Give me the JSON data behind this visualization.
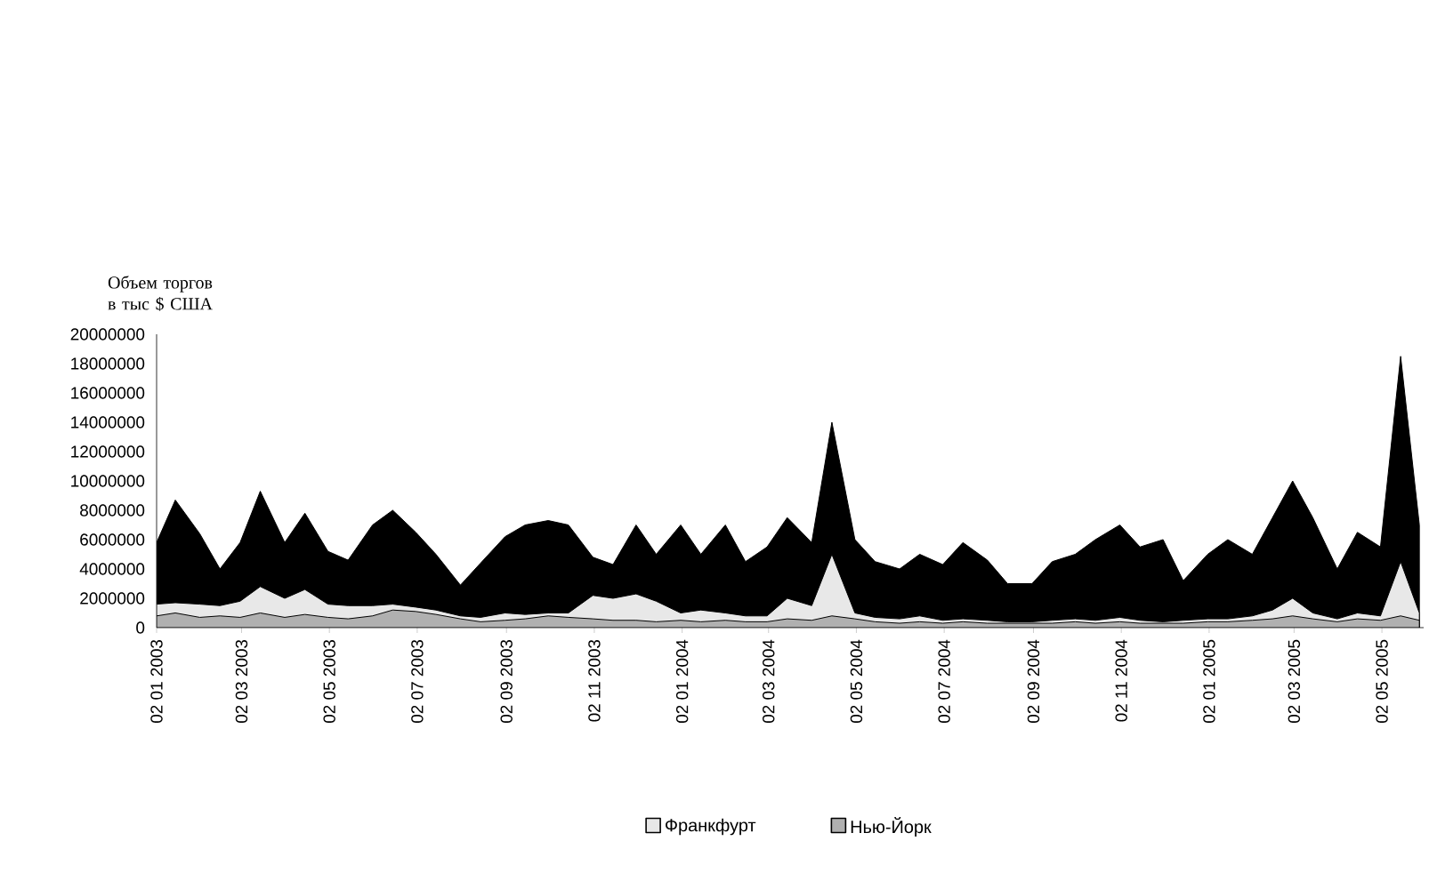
{
  "chart_data": {
    "type": "area",
    "ylabel": "Объем торгов в тыс $ США",
    "x": [
      "2003-01-02",
      "2003-01-15",
      "2003-02-01",
      "2003-02-15",
      "2003-03-01",
      "2003-03-15",
      "2003-04-01",
      "2003-04-15",
      "2003-05-01",
      "2003-05-15",
      "2003-06-01",
      "2003-06-15",
      "2003-07-01",
      "2003-07-15",
      "2003-08-01",
      "2003-08-15",
      "2003-09-01",
      "2003-09-15",
      "2003-10-01",
      "2003-10-15",
      "2003-11-01",
      "2003-11-15",
      "2003-12-01",
      "2003-12-15",
      "2004-01-01",
      "2004-01-15",
      "2004-02-01",
      "2004-02-15",
      "2004-03-01",
      "2004-03-15",
      "2004-04-01",
      "2004-04-15",
      "2004-05-01",
      "2004-05-15",
      "2004-06-01",
      "2004-06-15",
      "2004-07-01",
      "2004-07-15",
      "2004-08-01",
      "2004-08-15",
      "2004-09-01",
      "2004-09-15",
      "2004-10-01",
      "2004-10-15",
      "2004-11-01",
      "2004-11-15",
      "2004-12-01",
      "2004-12-15",
      "2005-01-01",
      "2005-01-15",
      "2005-02-01",
      "2005-02-15",
      "2005-03-01",
      "2005-03-15",
      "2005-04-01",
      "2005-04-15",
      "2005-05-01",
      "2005-05-15",
      "2005-05-28"
    ],
    "series": [
      {
        "color": "#000000",
        "values": [
          5800000,
          8700000,
          6400000,
          4000000,
          5800000,
          9300000,
          5800000,
          7800000,
          5200000,
          4600000,
          7000000,
          8000000,
          6500000,
          5000000,
          2900000,
          4400000,
          6200000,
          7000000,
          7300000,
          7000000,
          4800000,
          4300000,
          7000000,
          5000000,
          7000000,
          5000000,
          7000000,
          4500000,
          5500000,
          7500000,
          5800000,
          14000000,
          6000000,
          4500000,
          4000000,
          5000000,
          4300000,
          5800000,
          4600000,
          3000000,
          3000000,
          4500000,
          5000000,
          6000000,
          7000000,
          5500000,
          6000000,
          3200000,
          5000000,
          6000000,
          5000000,
          7500000,
          10000000,
          7500000,
          4000000,
          6500000,
          5500000,
          18500000,
          7000000
        ]
      },
      {
        "name": "Франкфурт",
        "color": "#e8e8e8",
        "values": [
          1600000,
          1700000,
          1600000,
          1500000,
          1800000,
          2800000,
          2000000,
          2600000,
          1600000,
          1500000,
          1500000,
          1600000,
          1400000,
          1200000,
          800000,
          700000,
          1000000,
          900000,
          1000000,
          1000000,
          2200000,
          2000000,
          2300000,
          1800000,
          1000000,
          1200000,
          1000000,
          800000,
          800000,
          2000000,
          1500000,
          5000000,
          1000000,
          700000,
          600000,
          800000,
          500000,
          600000,
          500000,
          400000,
          400000,
          500000,
          600000,
          500000,
          700000,
          500000,
          400000,
          500000,
          600000,
          600000,
          800000,
          1200000,
          2000000,
          1000000,
          600000,
          1000000,
          800000,
          4500000,
          1000000
        ]
      },
      {
        "name": "Нью-Йорк",
        "color": "#b0b0b0",
        "values": [
          800000,
          1000000,
          700000,
          800000,
          700000,
          1000000,
          700000,
          900000,
          700000,
          600000,
          800000,
          1200000,
          1100000,
          900000,
          600000,
          400000,
          500000,
          600000,
          800000,
          700000,
          600000,
          500000,
          500000,
          400000,
          500000,
          400000,
          500000,
          400000,
          400000,
          600000,
          500000,
          800000,
          600000,
          400000,
          300000,
          400000,
          300000,
          400000,
          300000,
          300000,
          300000,
          300000,
          400000,
          300000,
          400000,
          300000,
          300000,
          300000,
          400000,
          400000,
          500000,
          600000,
          800000,
          600000,
          400000,
          600000,
          500000,
          800000,
          500000
        ]
      }
    ],
    "xlim": [
      "2003-01-02",
      "2005-05-31"
    ],
    "xticks": [
      {
        "value": "2003-01-02",
        "label": "02 01 2003"
      },
      {
        "value": "2003-03-02",
        "label": "02 03 2003"
      },
      {
        "value": "2003-05-02",
        "label": "02 05 2003"
      },
      {
        "value": "2003-07-02",
        "label": "02 07 2003"
      },
      {
        "value": "2003-09-02",
        "label": "02 09 2003"
      },
      {
        "value": "2003-11-02",
        "label": "02 11 2003"
      },
      {
        "value": "2004-01-02",
        "label": "02 01 2004"
      },
      {
        "value": "2004-03-02",
        "label": "02 03 2004"
      },
      {
        "value": "2004-05-02",
        "label": "02 05 2004"
      },
      {
        "value": "2004-07-02",
        "label": "02 07 2004"
      },
      {
        "value": "2004-09-02",
        "label": "02 09 2004"
      },
      {
        "value": "2004-11-02",
        "label": "02 11 2004"
      },
      {
        "value": "2005-01-02",
        "label": "02 01 2005"
      },
      {
        "value": "2005-03-02",
        "label": "02 03 2005"
      },
      {
        "value": "2005-05-02",
        "label": "02 05 2005"
      }
    ],
    "ylim": [
      0,
      20000000
    ],
    "yticks": [
      0,
      2000000,
      4000000,
      6000000,
      8000000,
      10000000,
      12000000,
      14000000,
      16000000,
      18000000,
      20000000
    ],
    "legend": "bottom"
  }
}
